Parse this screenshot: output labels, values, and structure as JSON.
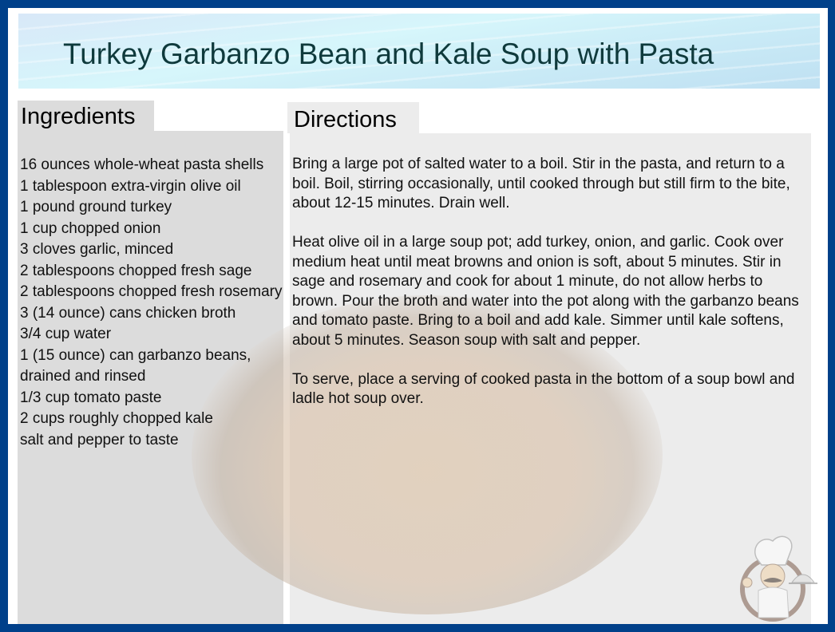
{
  "title": "Turkey Garbanzo Bean and Kale Soup with Pasta",
  "ingredients": {
    "heading": "Ingredients",
    "items": [
      "16 ounces whole-wheat pasta shells",
      "1 tablespoon extra-virgin olive oil",
      "1 pound ground turkey",
      "1 cup chopped onion",
      "3 cloves garlic, minced",
      "2 tablespoons chopped fresh sage",
      "2 tablespoons chopped fresh rosemary",
      "3 (14 ounce) cans chicken broth",
      "3/4 cup water",
      "1 (15 ounce) can garbanzo beans, drained and rinsed",
      "1/3 cup tomato paste",
      "2 cups roughly chopped kale",
      "salt and pepper to taste"
    ]
  },
  "directions": {
    "heading": "Directions",
    "paragraphs": [
      "Bring a large pot of salted water to a boil.  Stir in the pasta, and return to a boil. Boil, stirring occasionally, until cooked through but still firm to the bite, about 12-15 minutes. Drain well.",
      "Heat olive oil in a large soup pot; add turkey, onion, and garlic. Cook over medium heat until meat browns and onion is soft, about 5 minutes. Stir in sage and rosemary and cook for about 1 minute, do not allow herbs to brown.  Pour the broth and water into the pot along with the garbanzo beans and tomato paste. Bring to a boil and add kale. Simmer until kale softens, about 5 minutes.  Season soup with salt and pepper.",
      "To serve, place a serving of cooked pasta in the bottom of a soup bowl and ladle hot soup over."
    ]
  },
  "colors": {
    "border": "#00408a",
    "title_text": "#0f3a3c",
    "ingredients_bg": "#dcdcdc",
    "directions_bg": "#ececec"
  },
  "icons": {
    "logo": "chef-with-cloche-icon",
    "background": "bean-bowl-image"
  }
}
